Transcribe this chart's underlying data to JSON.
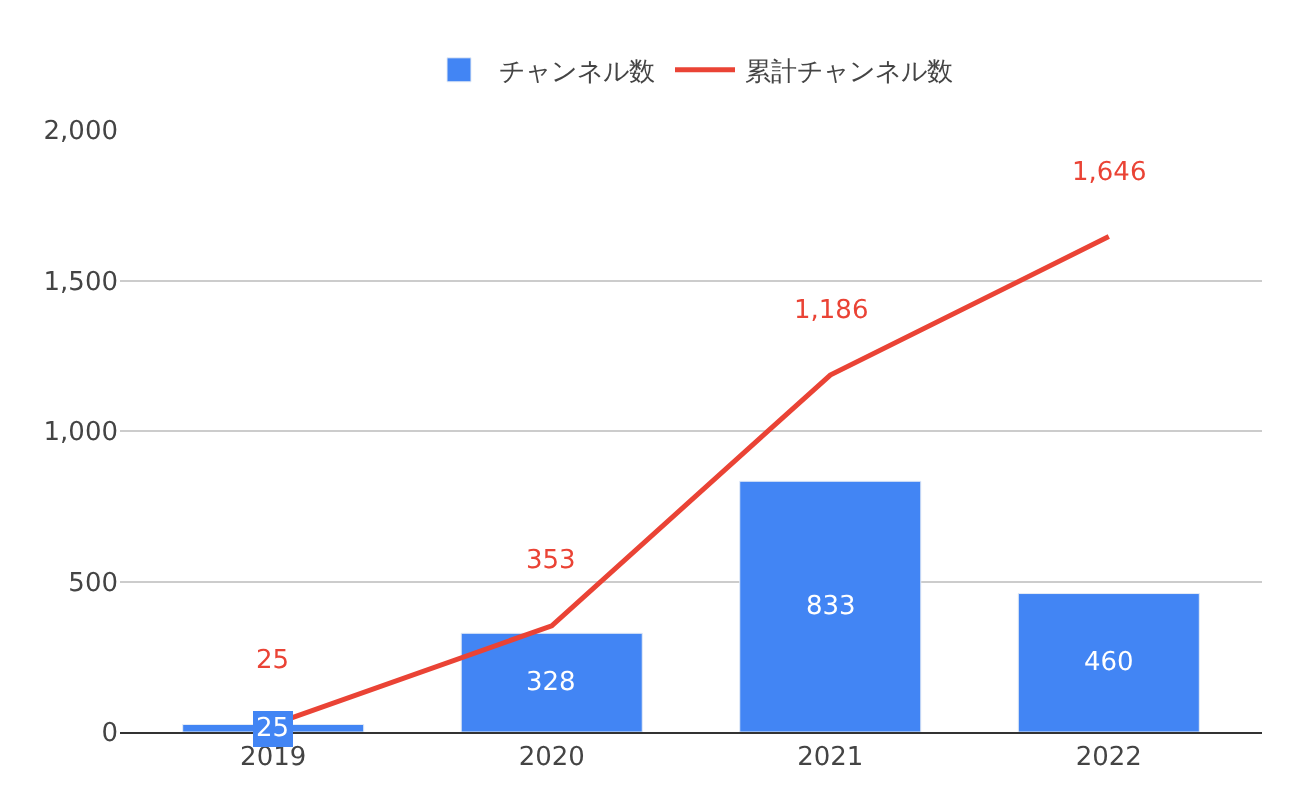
{
  "chart_data": {
    "type": "bar",
    "categories": [
      "2019",
      "2020",
      "2021",
      "2022"
    ],
    "series": [
      {
        "name": "チャンネル数",
        "color": "#4285f4",
        "values": [
          25,
          328,
          833,
          460
        ],
        "value_labels": [
          "25",
          "328",
          "833",
          "460"
        ]
      },
      {
        "name": "累計チャンネル数",
        "type": "line",
        "color": "#ea4335",
        "values": [
          25,
          353,
          1186,
          1646
        ],
        "value_labels": [
          "25",
          "353",
          "1,186",
          "1,646"
        ]
      }
    ],
    "ylim": [
      0,
      2000
    ],
    "yticks": [
      {
        "value": 0,
        "label": "0"
      },
      {
        "value": 500,
        "label": "500"
      },
      {
        "value": 1000,
        "label": "1,000"
      },
      {
        "value": 1500,
        "label": "1,500"
      },
      {
        "value": 2000,
        "label": "2,000"
      }
    ],
    "grid": "y",
    "legend": "top",
    "marker": "none",
    "line_style": "solid"
  }
}
